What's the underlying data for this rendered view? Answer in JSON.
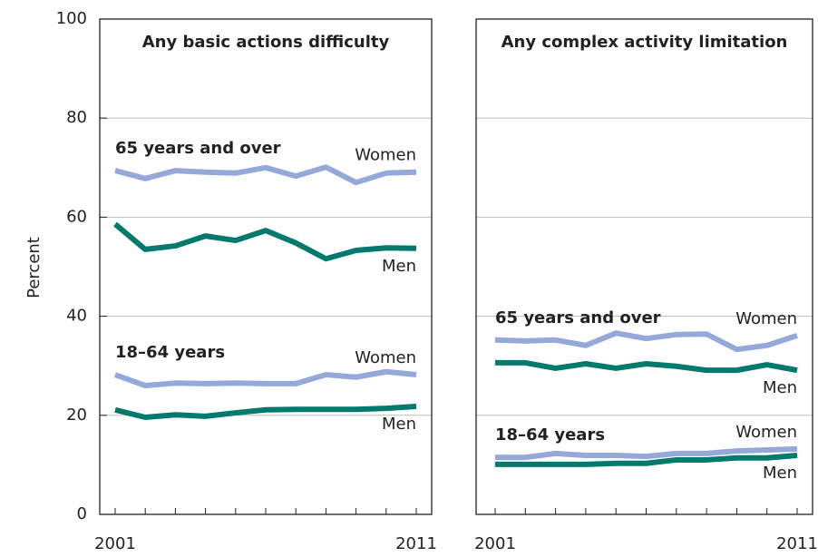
{
  "chart_data": [
    {
      "type": "line",
      "title": "Any basic actions difficulty",
      "y_label": "Percent",
      "x": [
        2001,
        2002,
        2003,
        2004,
        2005,
        2006,
        2007,
        2008,
        2009,
        2010,
        2011
      ],
      "xlim": [
        2001,
        2011
      ],
      "xticks": [
        2001,
        2011
      ],
      "ylim": [
        0,
        100
      ],
      "yticks": [
        0,
        20,
        40,
        60,
        80,
        100
      ],
      "show_ytick_labels": true,
      "grid": true,
      "groups": [
        {
          "label": "65 years and over",
          "series": [
            {
              "name": "Women",
              "color": "#94a9d9",
              "values": [
                69.4,
                67.8,
                69.4,
                69.1,
                68.9,
                70.0,
                68.3,
                70.1,
                67.0,
                68.9,
                69.1
              ]
            },
            {
              "name": "Men",
              "color": "#007a6c",
              "values": [
                58.6,
                53.5,
                54.2,
                56.2,
                55.3,
                57.3,
                54.8,
                51.6,
                53.3,
                53.8,
                53.7
              ]
            }
          ]
        },
        {
          "label": "18–64 years",
          "series": [
            {
              "name": "Women",
              "color": "#94a9d9",
              "values": [
                28.2,
                26.0,
                26.5,
                26.4,
                26.5,
                26.4,
                26.4,
                28.2,
                27.7,
                28.8,
                28.2
              ]
            },
            {
              "name": "Men",
              "color": "#007a6c",
              "values": [
                21.1,
                19.6,
                20.1,
                19.8,
                20.5,
                21.1,
                21.2,
                21.2,
                21.2,
                21.4,
                21.8
              ]
            }
          ]
        }
      ]
    },
    {
      "type": "line",
      "title": "Any complex activity limitation",
      "x": [
        2001,
        2002,
        2003,
        2004,
        2005,
        2006,
        2007,
        2008,
        2009,
        2010,
        2011
      ],
      "xlim": [
        2001,
        2011
      ],
      "xticks": [
        2001,
        2011
      ],
      "ylim": [
        0,
        100
      ],
      "yticks": [
        0,
        20,
        40,
        60,
        80,
        100
      ],
      "show_ytick_labels": false,
      "grid": true,
      "groups": [
        {
          "label": "65 years and over",
          "series": [
            {
              "name": "Women",
              "color": "#94a9d9",
              "values": [
                35.2,
                35.0,
                35.2,
                34.1,
                36.6,
                35.5,
                36.3,
                36.4,
                33.3,
                34.1,
                36.1
              ]
            },
            {
              "name": "Men",
              "color": "#007a6c",
              "values": [
                30.6,
                30.6,
                29.5,
                30.4,
                29.5,
                30.4,
                29.9,
                29.1,
                29.1,
                30.2,
                29.1
              ]
            }
          ]
        },
        {
          "label": "18–64 years",
          "series": [
            {
              "name": "Women",
              "color": "#94a9d9",
              "values": [
                11.5,
                11.5,
                12.3,
                11.9,
                11.9,
                11.7,
                12.3,
                12.3,
                12.8,
                13.0,
                13.2
              ]
            },
            {
              "name": "Men",
              "color": "#007a6c",
              "values": [
                10.1,
                10.1,
                10.1,
                10.1,
                10.3,
                10.3,
                11.0,
                11.0,
                11.4,
                11.4,
                11.9
              ]
            }
          ]
        }
      ]
    }
  ]
}
